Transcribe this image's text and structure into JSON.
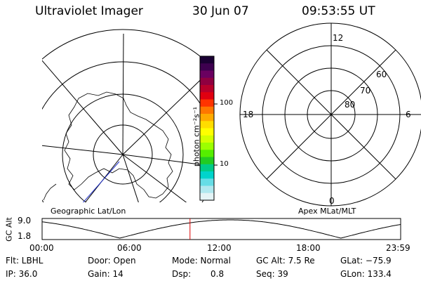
{
  "header": {
    "instrument": "Ultraviolet Imager",
    "date": "30 Jun 07",
    "time": "09:53:55 UT"
  },
  "left_panel": {
    "label": "Geographic Lat/Lon"
  },
  "right_panel": {
    "label": "Apex MLat/MLT",
    "mlt_labels": {
      "top": "12",
      "left": "18",
      "right": "6",
      "bottom": "0"
    },
    "mlat_labels": [
      "60",
      "70",
      "80"
    ]
  },
  "colorbar": {
    "unit_label": "photon cm⁻²s⁻¹",
    "tick_labels": [
      "100",
      "10"
    ],
    "colors": [
      "#1a0033",
      "#3d004f",
      "#6a0060",
      "#8f0040",
      "#b8002a",
      "#e00010",
      "#ff3300",
      "#ff7700",
      "#ffaa00",
      "#ffdd00",
      "#ffff00",
      "#d4ff00",
      "#9cff00",
      "#55ee00",
      "#22cc22",
      "#00cc88",
      "#00d4cc",
      "#66dde6",
      "#b0e8ef",
      "#e4f4f6"
    ]
  },
  "orbit": {
    "y_axis_label": "GC Alt",
    "y_ticks": [
      "9.0",
      "1.8"
    ],
    "x_ticks": [
      "00:00",
      "06:00",
      "12:00",
      "18:00",
      "23:59"
    ],
    "current_hour": 9.9
  },
  "info": {
    "filter": "Flt: LBHL",
    "ip": "IP: 36.0",
    "door": "Door: Open",
    "gain": "Gain: 14",
    "mode": "Mode: Normal",
    "dsp_label": "Dsp:",
    "dsp_value": "0.8",
    "gc_alt": "GC Alt: 7.5 Re",
    "seq": "Seq: 39",
    "glat": "GLat: −75.9",
    "glon": "GLon: 133.4"
  },
  "colors": {
    "marker": "#dd0000",
    "coast": "#000000",
    "track": "#2233cc"
  }
}
